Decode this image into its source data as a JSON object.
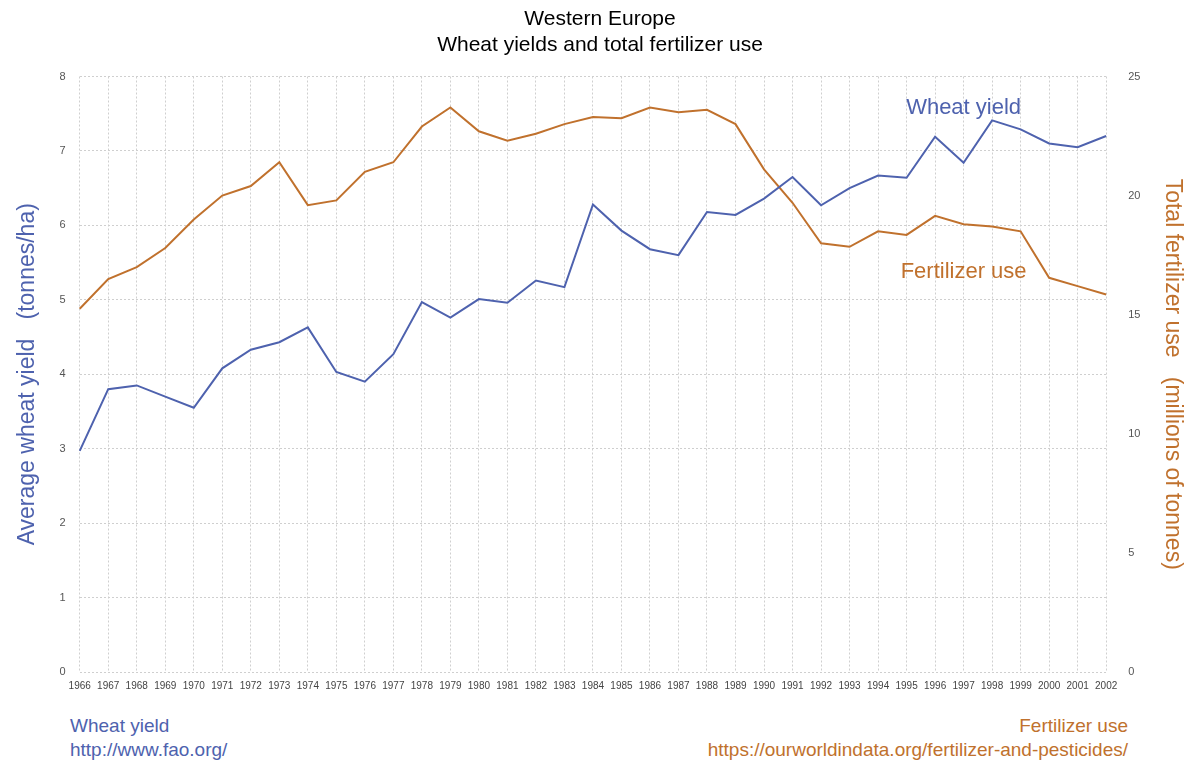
{
  "chart_data": {
    "type": "line",
    "title": [
      "Western Europe",
      "Wheat yields and total fertilizer use"
    ],
    "categories": [
      "1966",
      "1967",
      "1968",
      "1969",
      "1970",
      "1971",
      "1972",
      "1973",
      "1974",
      "1975",
      "1976",
      "1977",
      "1978",
      "1979",
      "1980",
      "1981",
      "1982",
      "1983",
      "1984",
      "1985",
      "1986",
      "1987",
      "1988",
      "1989",
      "1990",
      "1991",
      "1992",
      "1993",
      "1994",
      "1995",
      "1996",
      "1997",
      "1998",
      "1999",
      "2000",
      "2001",
      "2002"
    ],
    "y_label": "Average wheat yield   (tonnes/ha)",
    "y2_label": "Total fertilizer use   (millions of tonnes)",
    "ylim": [
      0,
      8
    ],
    "yticks": [
      0,
      1,
      2,
      3,
      4,
      5,
      6,
      7,
      8
    ],
    "y2lim": [
      0,
      25
    ],
    "y2ticks": [
      0,
      5,
      10,
      15,
      20,
      25
    ],
    "grid": true,
    "series": [
      {
        "name": "Wheat yield",
        "color": "#4e62ae",
        "axis": "y",
        "values": [
          2.97,
          3.8,
          3.85,
          3.7,
          3.55,
          4.08,
          4.33,
          4.43,
          4.63,
          4.03,
          3.9,
          4.27,
          4.97,
          4.76,
          5.01,
          4.96,
          5.26,
          5.17,
          6.28,
          5.93,
          5.68,
          5.6,
          6.18,
          6.14,
          6.36,
          6.65,
          6.27,
          6.5,
          6.67,
          6.64,
          7.19,
          6.84,
          7.41,
          7.29,
          7.1,
          7.05,
          7.2
        ]
      },
      {
        "name": "Fertilizer use",
        "color": "#c0712d",
        "axis": "y2",
        "values": [
          15.25,
          16.5,
          17.0,
          17.8,
          19.0,
          20.0,
          20.4,
          21.4,
          19.6,
          19.8,
          21.0,
          21.4,
          22.9,
          23.7,
          22.7,
          22.3,
          22.6,
          23.0,
          23.3,
          23.25,
          23.7,
          23.5,
          23.6,
          23.0,
          21.1,
          19.7,
          18.0,
          17.85,
          18.5,
          18.35,
          19.15,
          18.8,
          18.7,
          18.5,
          16.55,
          16.2,
          15.85
        ]
      }
    ],
    "sources": [
      {
        "name": "Wheat yield",
        "url": "http://www.fao.org/"
      },
      {
        "name": "Fertilizer use",
        "url": "https://ourworldindata.org/fertilizer-and-pesticides/"
      }
    ]
  }
}
